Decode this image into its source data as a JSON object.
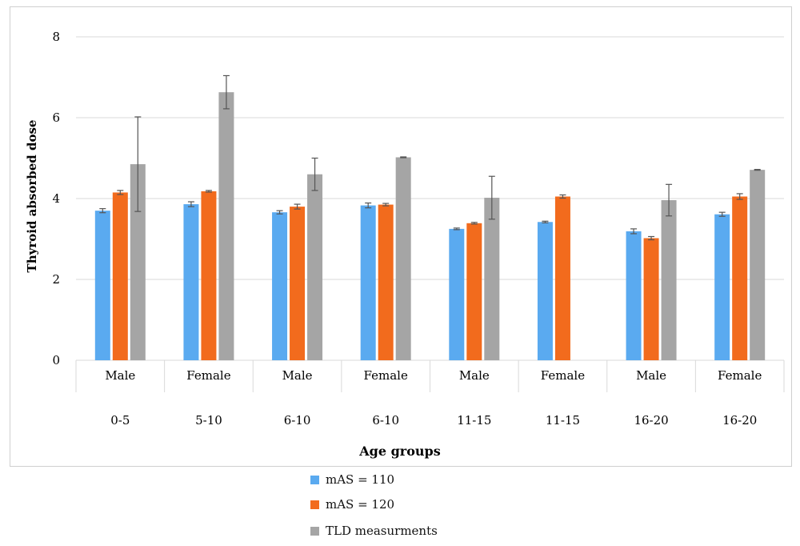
{
  "chart_data": {
    "type": "bar",
    "title": "",
    "ylabel": "Thyroid absorbed dose",
    "xlabel": "Age groups",
    "ylim": [
      0,
      8
    ],
    "yticks": [
      0,
      2,
      4,
      6,
      8
    ],
    "grid": true,
    "legend_position": "bottom",
    "categories": [
      {
        "gender": "Male",
        "age": "0-5"
      },
      {
        "gender": "Female",
        "age": "5-10"
      },
      {
        "gender": "Male",
        "age": "6-10"
      },
      {
        "gender": "Female",
        "age": "6-10"
      },
      {
        "gender": "Male",
        "age": "11-15"
      },
      {
        "gender": "Female",
        "age": "11-15"
      },
      {
        "gender": "Male",
        "age": "16-20"
      },
      {
        "gender": "Female",
        "age": "16-20"
      }
    ],
    "series": [
      {
        "name": "mAS = 110",
        "color": "#5aaaf0",
        "values": [
          3.7,
          3.86,
          3.66,
          3.83,
          3.25,
          3.42,
          3.19,
          3.61
        ],
        "errors": [
          0.05,
          0.06,
          0.04,
          0.06,
          0.02,
          0.02,
          0.06,
          0.05
        ]
      },
      {
        "name": "mAS = 120",
        "color": "#f26b1d",
        "values": [
          4.15,
          4.18,
          3.8,
          3.85,
          3.39,
          4.05,
          3.02,
          4.05
        ],
        "errors": [
          0.05,
          0.02,
          0.06,
          0.03,
          0.02,
          0.04,
          0.04,
          0.07
        ]
      },
      {
        "name": "TLD measurments",
        "color": "#a5a5a5",
        "values": [
          4.85,
          6.63,
          4.6,
          5.02,
          4.02,
          null,
          3.96,
          4.71
        ],
        "errors": [
          1.17,
          0.41,
          0.4,
          0.01,
          0.53,
          null,
          0.39,
          0.01
        ]
      }
    ]
  }
}
